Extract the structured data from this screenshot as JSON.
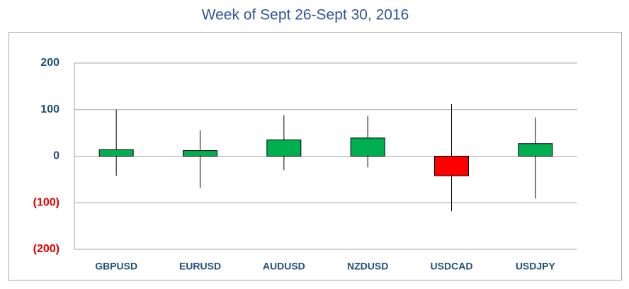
{
  "chart_data": {
    "type": "candlestick",
    "title": "Week of Sept 26-Sept 30, 2016",
    "categories": [
      "GBPUSD",
      "EURUSD",
      "AUDUSD",
      "NZDUSD",
      "USDCAD",
      "USDJPY"
    ],
    "open": [
      0,
      0,
      0,
      0,
      0,
      0
    ],
    "close": [
      14,
      12,
      35,
      39,
      -42,
      27
    ],
    "high": [
      100,
      56,
      88,
      86,
      112,
      83
    ],
    "low": [
      -42,
      -68,
      -30,
      -24,
      -118,
      -91
    ],
    "up_color": "#00b050",
    "down_color": "#ff0000",
    "tick_color": "#1f4e79",
    "negative_tick_color": "#e00000",
    "ylim": [
      -200,
      200
    ],
    "yticks": [
      {
        "value": -200,
        "label": "(200)"
      },
      {
        "value": -100,
        "label": "(100)"
      },
      0,
      100,
      200
    ],
    "grid": true
  }
}
